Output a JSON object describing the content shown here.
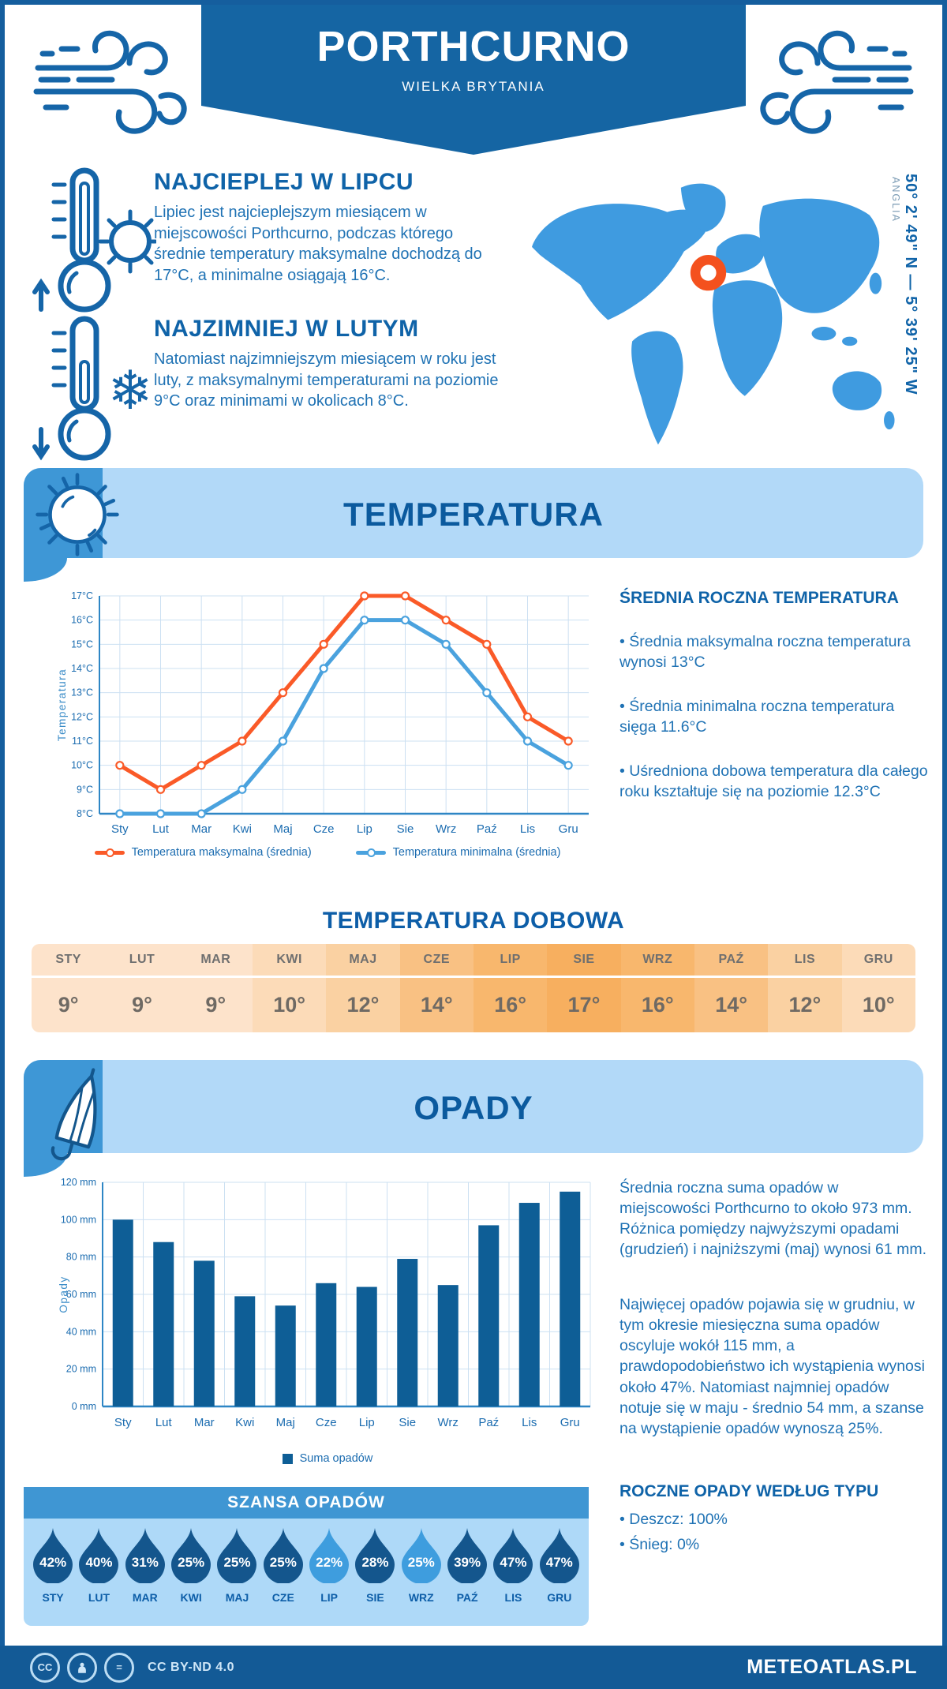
{
  "header": {
    "title": "PORTHCURNO",
    "subtitle": "WIELKA BRYTANIA"
  },
  "location": {
    "coordinates": "50° 2' 49\" N — 5° 39' 25\" W",
    "region": "ANGLIA",
    "marker_color": "#F4511E"
  },
  "intro": {
    "warm": {
      "title": "NAJCIEPLEJ W LIPCU",
      "text": "Lipiec jest najcieplejszym miesiącem w miejscowości Porthcurno, podczas którego średnie temperatury maksymalne dochodzą do 17°C, a minimalne osiągają 16°C."
    },
    "cold": {
      "title": "NAJZIMNIEJ W LUTYM",
      "text": "Natomiast najzimniejszym miesiącem w roku jest luty, z maksymalnymi temperaturami na poziomie 9°C oraz minimami w okolicach 8°C."
    }
  },
  "sections": {
    "temperature": "TEMPERATURA",
    "precipitation": "OPADY"
  },
  "annual_temperature": {
    "heading": "ŚREDNIA ROCZNA TEMPERATURA",
    "bullets": [
      "• Średnia maksymalna roczna temperatura wynosi 13°C",
      "• Średnia minimalna roczna temperatura sięga 11.6°C",
      "• Uśredniona dobowa temperatura dla całego roku kształtuje się na poziomie 12.3°C"
    ]
  },
  "daily_temperature": {
    "title": "TEMPERATURA DOBOWA",
    "months": [
      "STY",
      "LUT",
      "MAR",
      "KWI",
      "MAJ",
      "CZE",
      "LIP",
      "SIE",
      "WRZ",
      "PAŹ",
      "LIS",
      "GRU"
    ],
    "values": [
      "9°",
      "9°",
      "9°",
      "10°",
      "12°",
      "14°",
      "16°",
      "17°",
      "16°",
      "14°",
      "12°",
      "10°"
    ],
    "cell_colors": [
      "#FDE3CB",
      "#FDE3CB",
      "#FDE3CB",
      "#FCDBB8",
      "#FAD1A2",
      "#F9C183",
      "#F8B76D",
      "#F7AF5F",
      "#F8B76D",
      "#F9C183",
      "#FAD1A2",
      "#FCDBB8"
    ]
  },
  "precipitation": {
    "paragraphs": [
      "Średnia roczna suma opadów w miejscowości Porthcurno to około 973 mm. Różnica pomiędzy najwyższymi opadami (grudzień) i najniższymi (maj) wynosi 61 mm.",
      "Najwięcej opadów pojawia się w grudniu, w tym okresie miesięczna suma opadów oscyluje wokół 115 mm, a prawdopodobieństwo ich wystąpienia wynosi około 47%. Natomiast najmniej opadów notuje się w maju - średnio 54 mm, a szanse na wystąpienie opadów wynoszą 25%.",
      "ROCZNE OPADY WEDŁUG TYPU"
    ],
    "type_heading": "ROCZNE OPADY WEDŁUG TYPU",
    "type_bullets": [
      "• Deszcz: 100%",
      "• Śnieg: 0%"
    ]
  },
  "chance_of_precip": {
    "title": "SZANSA OPADÓW",
    "months": [
      "STY",
      "LUT",
      "MAR",
      "KWI",
      "MAJ",
      "CZE",
      "LIP",
      "SIE",
      "WRZ",
      "PAŹ",
      "LIS",
      "GRU"
    ],
    "values_pct": [
      42,
      40,
      31,
      25,
      25,
      25,
      22,
      28,
      25,
      39,
      47,
      47
    ],
    "light_indices": [
      6,
      8
    ],
    "drop_dark": "#14568D",
    "drop_light": "#3E9DDE"
  },
  "footer": {
    "license": "CC BY-ND 4.0",
    "site": "METEOATLAS.PL"
  },
  "chart_data": [
    {
      "type": "line",
      "categories": [
        "Sty",
        "Lut",
        "Mar",
        "Kwi",
        "Maj",
        "Cze",
        "Lip",
        "Sie",
        "Wrz",
        "Paź",
        "Lis",
        "Gru"
      ],
      "series": [
        {
          "name": "Temperatura maksymalna (średnia)",
          "color": "#FA5A28",
          "values": [
            10,
            9,
            10,
            11,
            13,
            15,
            17,
            17,
            16,
            15,
            12,
            11
          ]
        },
        {
          "name": "Temperatura minimalna (średnia)",
          "color": "#4AA2DE",
          "values": [
            8,
            8,
            8,
            9,
            11,
            14,
            16,
            16,
            15,
            13,
            11,
            10
          ]
        }
      ],
      "title": "",
      "xlabel": "",
      "ylabel": "Temperatura",
      "ylim": [
        8,
        17
      ],
      "ytick_step": 1,
      "ytick_suffix": "°C",
      "grid": true,
      "legend_position": "bottom"
    },
    {
      "type": "bar",
      "categories": [
        "Sty",
        "Lut",
        "Mar",
        "Kwi",
        "Maj",
        "Cze",
        "Lip",
        "Sie",
        "Wrz",
        "Paź",
        "Lis",
        "Gru"
      ],
      "values": [
        100,
        88,
        78,
        59,
        54,
        66,
        64,
        79,
        65,
        97,
        109,
        115
      ],
      "bar_color": "#0E5E96",
      "legend": "Suma opadów",
      "title": "",
      "xlabel": "",
      "ylabel": "Opady",
      "ylim": [
        0,
        120
      ],
      "ytick_step": 20,
      "ytick_suffix": " mm",
      "grid": true,
      "legend_position": "bottom"
    }
  ]
}
